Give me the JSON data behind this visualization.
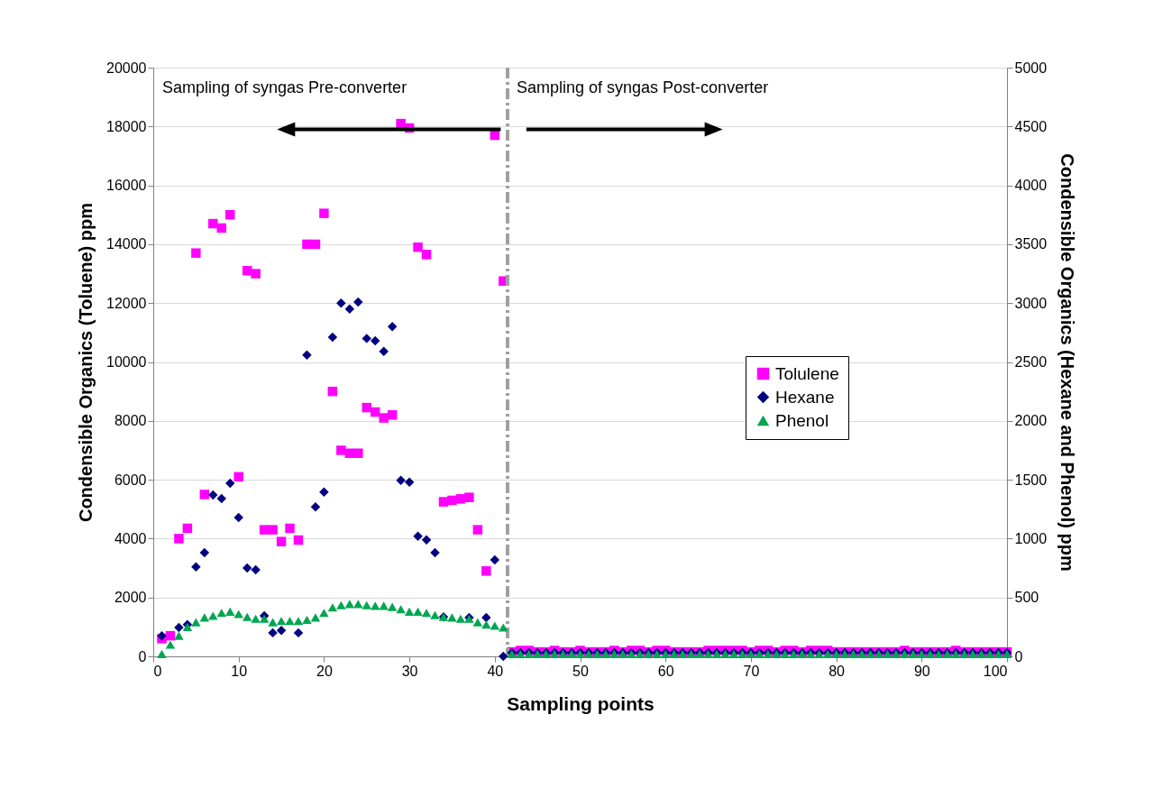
{
  "chart_data": {
    "type": "scatter",
    "xlabel": "Sampling points",
    "ylabel": "Condensible Organics (Toluene) ppm",
    "y2label": "Condensible Organics (Hexane and Phenol) ppm",
    "xlim": [
      0,
      100
    ],
    "xticks": [
      0,
      10,
      20,
      30,
      40,
      50,
      60,
      70,
      80,
      90,
      100
    ],
    "ylim": [
      0,
      20000
    ],
    "yticks": [
      0,
      2000,
      4000,
      6000,
      8000,
      10000,
      12000,
      14000,
      16000,
      18000,
      20000
    ],
    "y2lim": [
      0,
      5000
    ],
    "y2ticks": [
      0,
      500,
      1000,
      1500,
      2000,
      2500,
      3000,
      3500,
      4000,
      4500,
      5000
    ],
    "grid": "y",
    "legend": "right",
    "annotations": [
      "Sampling of syngas Pre-converter",
      "Sampling of syngas  Post-converter"
    ],
    "ref_lines": [
      {
        "axis": "x",
        "value": 41.5,
        "color": "#a0a0a0",
        "line_style": "dashed"
      }
    ],
    "series": [
      {
        "name": "Tolulene",
        "color": "#ff00ff",
        "marker": "square",
        "x": [
          1,
          2,
          3,
          4,
          5,
          6,
          7,
          8,
          9,
          10,
          11,
          12,
          13,
          14,
          15,
          16,
          17,
          18,
          19,
          20,
          21,
          22,
          23,
          24,
          25,
          26,
          27,
          28,
          29,
          30,
          31,
          32,
          34,
          35,
          36,
          37,
          38,
          39,
          40,
          41,
          42,
          43,
          44,
          45,
          46,
          47,
          48,
          49,
          50,
          51,
          52,
          53,
          54,
          55,
          56,
          57,
          58,
          59,
          60,
          61,
          62,
          63,
          64,
          65,
          66,
          67,
          68,
          69,
          70,
          71,
          72,
          73,
          74,
          75,
          76,
          77,
          78,
          79,
          80,
          81,
          82,
          83,
          84,
          85,
          86,
          87,
          88,
          89,
          90,
          91,
          92,
          93,
          94,
          95,
          96,
          97,
          98,
          99,
          100
        ],
        "values": [
          600,
          700,
          4000,
          4350,
          13700,
          5500,
          14700,
          14550,
          15000,
          6100,
          13100,
          13000,
          4300,
          4300,
          3900,
          4350,
          3950,
          14000,
          14000,
          15050,
          9000,
          7000,
          6900,
          6900,
          8450,
          8300,
          8100,
          8200,
          18100,
          17950,
          13900,
          13650,
          5250,
          5300,
          5350,
          5400,
          4300,
          2900,
          17700,
          12750,
          150,
          200,
          200,
          150,
          150,
          200,
          150,
          150,
          200,
          150,
          150,
          150,
          200,
          150,
          200,
          200,
          150,
          200,
          200,
          150,
          150,
          150,
          150,
          200,
          200,
          200,
          200,
          200,
          150,
          200,
          200,
          150,
          200,
          200,
          150,
          200,
          200,
          200,
          150,
          150,
          150,
          150,
          150,
          150,
          150,
          150,
          200,
          150,
          150,
          150,
          150,
          150,
          200,
          150,
          150,
          150,
          150,
          150,
          150
        ]
      },
      {
        "name": "Hexane",
        "color": "#000080",
        "marker": "diamond",
        "axis": "y2",
        "x": [
          1,
          3,
          4,
          5,
          6,
          7,
          8,
          9,
          10,
          11,
          12,
          13,
          14,
          15,
          17,
          18,
          19,
          20,
          21,
          22,
          23,
          24,
          25,
          26,
          27,
          28,
          29,
          30,
          31,
          32,
          33,
          34,
          37,
          39,
          40,
          41,
          42,
          43,
          44,
          45,
          46,
          47,
          48,
          49,
          50,
          51,
          52,
          53,
          54,
          55,
          56,
          57,
          58,
          59,
          60,
          61,
          62,
          63,
          64,
          65,
          66,
          67,
          68,
          69,
          70,
          71,
          72,
          73,
          74,
          75,
          76,
          77,
          78,
          79,
          80,
          81,
          82,
          83,
          84,
          85,
          86,
          87,
          88,
          89,
          90,
          91,
          92,
          93,
          94,
          95,
          96,
          97,
          98,
          99,
          100
        ],
        "values": [
          175,
          245,
          270,
          760,
          880,
          1370,
          1340,
          1470,
          1180,
          750,
          735,
          345,
          200,
          220,
          200,
          2560,
          1270,
          1395,
          2710,
          3000,
          2950,
          3010,
          2700,
          2680,
          2590,
          2800,
          1495,
          1480,
          1020,
          990,
          880,
          335,
          330,
          330,
          820,
          0,
          30,
          30,
          30,
          30,
          30,
          30,
          30,
          30,
          30,
          30,
          30,
          30,
          30,
          30,
          30,
          30,
          30,
          30,
          30,
          30,
          30,
          30,
          30,
          30,
          30,
          30,
          30,
          30,
          30,
          30,
          30,
          30,
          30,
          30,
          30,
          30,
          30,
          30,
          30,
          30,
          30,
          30,
          30,
          30,
          30,
          30,
          30,
          30,
          30,
          30,
          30,
          30,
          30,
          30,
          30,
          30,
          30,
          30,
          30
        ]
      },
      {
        "name": "Phenol",
        "color": "#00a651",
        "marker": "triangle",
        "axis": "y2",
        "x": [
          1,
          2,
          3,
          4,
          5,
          6,
          7,
          8,
          9,
          10,
          11,
          12,
          13,
          14,
          15,
          16,
          17,
          18,
          19,
          20,
          21,
          22,
          23,
          24,
          25,
          26,
          27,
          28,
          29,
          30,
          31,
          32,
          33,
          34,
          35,
          36,
          37,
          38,
          39,
          40,
          41,
          42,
          43,
          44,
          45,
          46,
          47,
          48,
          49,
          50,
          51,
          52,
          53,
          54,
          55,
          56,
          57,
          58,
          59,
          60,
          61,
          62,
          63,
          64,
          65,
          66,
          67,
          68,
          69,
          70,
          71,
          72,
          73,
          74,
          75,
          76,
          77,
          78,
          79,
          80,
          81,
          82,
          83,
          84,
          85,
          86,
          87,
          88,
          89,
          90,
          91,
          92,
          93,
          94,
          95,
          96,
          97,
          98,
          99,
          100
        ],
        "values": [
          20,
          100,
          175,
          250,
          290,
          330,
          345,
          370,
          380,
          360,
          335,
          320,
          320,
          290,
          300,
          300,
          300,
          310,
          330,
          370,
          415,
          435,
          445,
          445,
          435,
          430,
          430,
          420,
          400,
          380,
          380,
          370,
          350,
          335,
          330,
          320,
          320,
          290,
          270,
          260,
          245,
          20,
          20,
          20,
          20,
          20,
          20,
          20,
          20,
          20,
          20,
          20,
          20,
          20,
          20,
          20,
          20,
          20,
          20,
          20,
          20,
          20,
          20,
          20,
          20,
          20,
          20,
          20,
          20,
          20,
          20,
          20,
          20,
          20,
          20,
          20,
          20,
          20,
          20,
          20,
          20,
          20,
          20,
          20,
          20,
          20,
          20,
          20,
          20,
          20,
          20,
          20,
          20,
          20,
          20,
          20,
          20,
          20,
          20,
          20
        ]
      }
    ]
  }
}
